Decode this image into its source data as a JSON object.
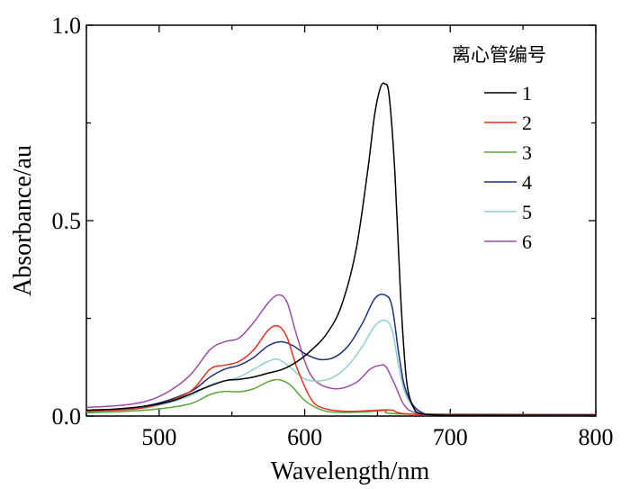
{
  "chart_data": {
    "type": "line",
    "xlabel": "Wavelength/nm",
    "ylabel": "Absorbance/au",
    "xlim": [
      450,
      800
    ],
    "ylim": [
      0,
      1.0
    ],
    "xticks": [
      "500",
      "600",
      "700",
      "800"
    ],
    "yticks": [
      "0.0",
      "0.5",
      "1.0"
    ],
    "grid": false,
    "legend_title": "离心管编号",
    "legend_position": "top-right",
    "series": [
      {
        "name": "1",
        "color": "#000000",
        "x": [
          450,
          470,
          490,
          510,
          530,
          545,
          555,
          565,
          575,
          585,
          595,
          605,
          615,
          625,
          635,
          643,
          648,
          652,
          655,
          658,
          662,
          666,
          670,
          675,
          680,
          690,
          700,
          750,
          800
        ],
        "y": [
          0.015,
          0.018,
          0.025,
          0.04,
          0.07,
          0.09,
          0.094,
          0.1,
          0.11,
          0.12,
          0.14,
          0.17,
          0.21,
          0.28,
          0.42,
          0.62,
          0.77,
          0.84,
          0.85,
          0.82,
          0.62,
          0.3,
          0.09,
          0.02,
          0.006,
          0.003,
          0.002,
          0.002,
          0.002
        ]
      },
      {
        "name": "2",
        "color": "#e8311a",
        "x": [
          450,
          490,
          520,
          535,
          545,
          555,
          565,
          575,
          582,
          588,
          595,
          605,
          615,
          630,
          650,
          660,
          680,
          800
        ],
        "y": [
          0.012,
          0.022,
          0.06,
          0.12,
          0.13,
          0.14,
          0.17,
          0.22,
          0.23,
          0.2,
          0.12,
          0.04,
          0.018,
          0.012,
          0.015,
          0.015,
          0.004,
          0.003
        ]
      },
      {
        "name": "3",
        "color": "#5aa838",
        "x": [
          450,
          490,
          520,
          535,
          545,
          555,
          565,
          575,
          582,
          590,
          600,
          610,
          620,
          640,
          655,
          670,
          800
        ],
        "y": [
          0.008,
          0.015,
          0.03,
          0.055,
          0.063,
          0.062,
          0.07,
          0.088,
          0.093,
          0.08,
          0.04,
          0.018,
          0.01,
          0.01,
          0.014,
          0.005,
          0.003
        ]
      },
      {
        "name": "4",
        "color": "#1f2d7a",
        "x": [
          450,
          490,
          520,
          535,
          545,
          555,
          565,
          575,
          584,
          592,
          600,
          610,
          620,
          630,
          640,
          648,
          655,
          660,
          665,
          670,
          680,
          700,
          800
        ],
        "y": [
          0.012,
          0.025,
          0.06,
          0.1,
          0.12,
          0.13,
          0.15,
          0.18,
          0.19,
          0.18,
          0.16,
          0.145,
          0.15,
          0.18,
          0.24,
          0.3,
          0.31,
          0.28,
          0.15,
          0.06,
          0.01,
          0.004,
          0.003
        ]
      },
      {
        "name": "5",
        "color": "#8fcfd0",
        "x": [
          450,
          490,
          520,
          535,
          545,
          555,
          565,
          575,
          582,
          590,
          600,
          610,
          620,
          630,
          640,
          648,
          655,
          660,
          665,
          670,
          680,
          700,
          800
        ],
        "y": [
          0.01,
          0.02,
          0.05,
          0.08,
          0.09,
          0.1,
          0.12,
          0.14,
          0.145,
          0.125,
          0.095,
          0.09,
          0.1,
          0.13,
          0.18,
          0.23,
          0.245,
          0.22,
          0.12,
          0.05,
          0.008,
          0.003,
          0.002
        ]
      },
      {
        "name": "6",
        "color": "#9b4ea3",
        "x": [
          450,
          480,
          500,
          520,
          535,
          545,
          555,
          565,
          575,
          582,
          588,
          595,
          605,
          620,
          635,
          645,
          652,
          656,
          662,
          668,
          675,
          690,
          800
        ],
        "y": [
          0.022,
          0.03,
          0.05,
          0.1,
          0.17,
          0.19,
          0.2,
          0.24,
          0.29,
          0.31,
          0.29,
          0.2,
          0.1,
          0.07,
          0.085,
          0.12,
          0.13,
          0.125,
          0.08,
          0.03,
          0.01,
          0.005,
          0.004
        ]
      }
    ]
  }
}
